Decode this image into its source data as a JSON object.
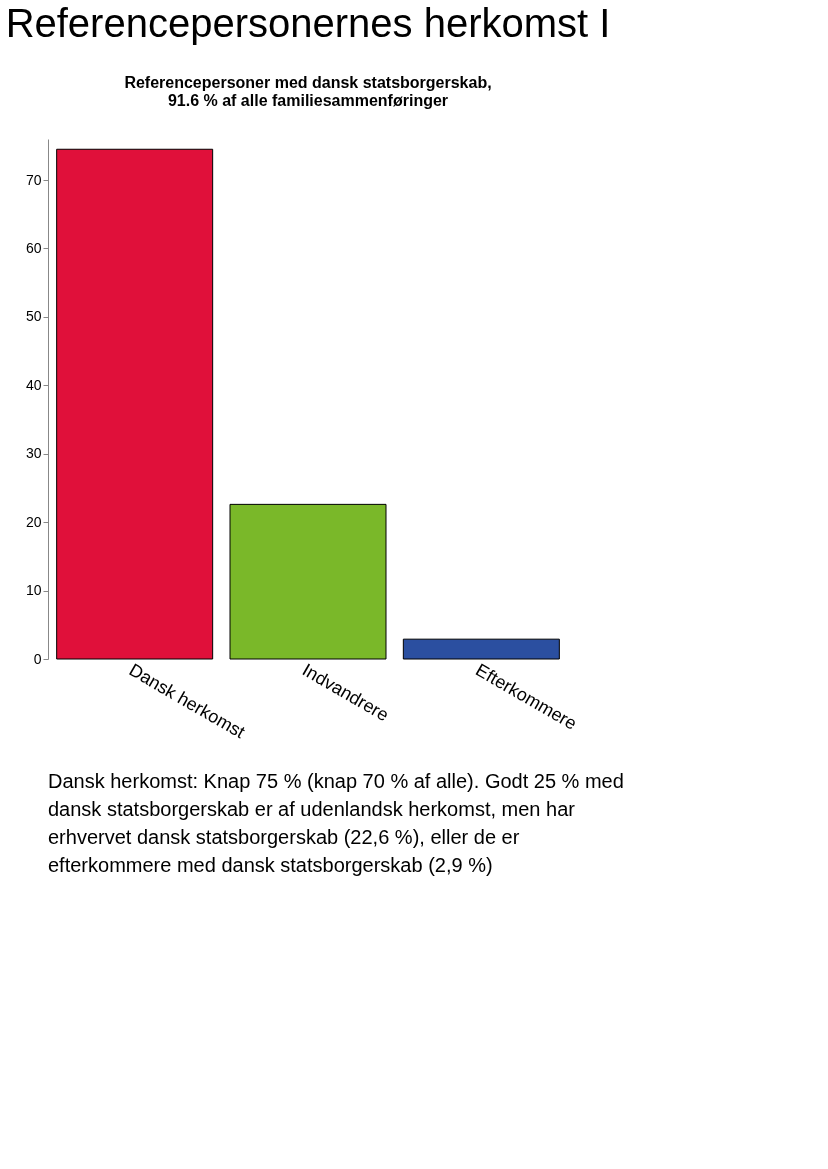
{
  "chart_data": {
    "type": "bar",
    "title": "Referencepersonernes herkomst I",
    "subtitle": "Referencepersoner med dansk statsborgerskab,\n91.6 % af alle familiesammenføringer",
    "categories": [
      "Dansk herkomst",
      "Indvandrere",
      "Efterkommere"
    ],
    "values": [
      74.5,
      22.6,
      2.9
    ],
    "colors": [
      "#e0103a",
      "#7ab829",
      "#2b4fa0"
    ],
    "ylim": [
      0,
      76
    ],
    "yticks": [
      0,
      10,
      20,
      30,
      40,
      50,
      60,
      70
    ],
    "grid": false,
    "annotations": [
      "Dansk herkomst: Knap 75 % (knap 70 % af alle). Godt 25 % med dansk statsborgerskab er af udenlandsk herkomst, men har erhvervet dansk statsborgerskab (22,6 %), eller de er efterkommere med dansk statsborgerskab (2,9 %)"
    ]
  }
}
